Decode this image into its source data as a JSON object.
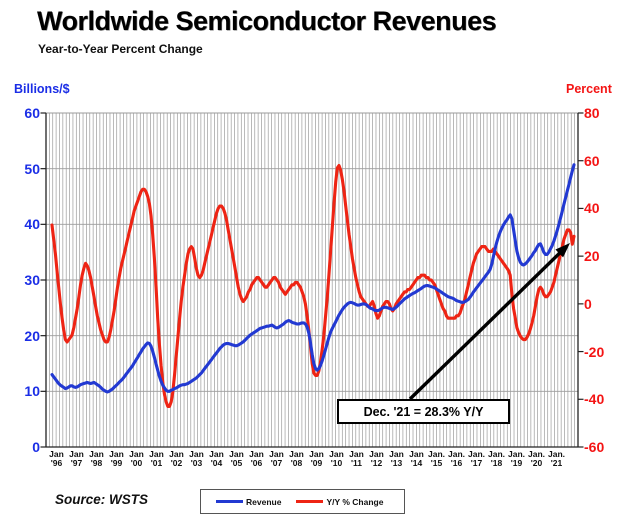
{
  "header": {
    "title": "Worldwide Semiconductor Revenues",
    "subtitle": "Year-to-Year Percent Change"
  },
  "axes": {
    "left_unit": "Billions/$",
    "right_unit": "Percent",
    "left_ticks": [
      60,
      50,
      40,
      30,
      20,
      10,
      0
    ],
    "right_ticks": [
      80,
      60,
      40,
      20,
      0,
      -20,
      -40,
      -60
    ],
    "x_labels": [
      {
        "m": "Jan",
        "y": "'96"
      },
      {
        "m": "Jan",
        "y": "'97"
      },
      {
        "m": "Jan",
        "y": "'98"
      },
      {
        "m": "Jan",
        "y": "'99"
      },
      {
        "m": "Jan",
        "y": "'00"
      },
      {
        "m": "Jan",
        "y": "'01"
      },
      {
        "m": "Jan",
        "y": "'02"
      },
      {
        "m": "Jan",
        "y": "'03"
      },
      {
        "m": "Jan",
        "y": "'04"
      },
      {
        "m": "Jan",
        "y": "'05"
      },
      {
        "m": "Jan",
        "y": "'06"
      },
      {
        "m": "Jan",
        "y": "'07"
      },
      {
        "m": "Jan",
        "y": "'08"
      },
      {
        "m": "Jan",
        "y": "'09"
      },
      {
        "m": "Jan",
        "y": "'10"
      },
      {
        "m": "Jan",
        "y": "'11"
      },
      {
        "m": "Jan",
        "y": "'12"
      },
      {
        "m": "Jan",
        "y": "'13"
      },
      {
        "m": "Jan",
        "y": "'14"
      },
      {
        "m": "Jan.",
        "y": "'15"
      },
      {
        "m": "Jan.",
        "y": "'16"
      },
      {
        "m": "Jan.",
        "y": "'17"
      },
      {
        "m": "Jan.",
        "y": "'18"
      },
      {
        "m": "Jan.",
        "y": "'19"
      },
      {
        "m": "Jan.",
        "y": "'20"
      },
      {
        "m": "Jan.",
        "y": "'21"
      }
    ]
  },
  "annotation": {
    "text": "Dec. '21 = 28.3% Y/Y"
  },
  "legend": [
    {
      "label": "Revenue",
      "color": "#2239d2"
    },
    {
      "label": "Y/Y % Change",
      "color": "#ee2414"
    }
  ],
  "source": "Source: WSTS",
  "colors": {
    "revenue_line": "#2239d2",
    "yoy_line": "#ee2414",
    "left_axis_text": "#1b2ee6",
    "right_axis_text": "#f41414",
    "grid": "#9b9b9b",
    "spine": "#222222",
    "arrow": "#000000"
  },
  "chart_data": {
    "type": "line",
    "title": "Worldwide Semiconductor Revenues",
    "subtitle": "Year-to-Year Percent Change",
    "x_start": "Jan 1996",
    "x_end": "Dec 2021",
    "freq": "monthly",
    "grid": true,
    "left_axis": {
      "label": "Billions/$",
      "min": 0,
      "max": 60
    },
    "right_axis": {
      "label": "Percent",
      "min": -60,
      "max": 80
    },
    "annotation": "Dec. '21 = 28.3% Y/Y",
    "series": [
      {
        "name": "Y/Y % Change",
        "axis": "right",
        "color": "#ee2414",
        "values": [
          33,
          27,
          21,
          14,
          7,
          0,
          -6,
          -11,
          -15,
          -16,
          -15,
          -14,
          -13,
          -10,
          -6,
          -2,
          3,
          8,
          12,
          15,
          17,
          16,
          14,
          11,
          7,
          3,
          -1,
          -5,
          -8,
          -11,
          -13,
          -15,
          -16,
          -16,
          -14,
          -11,
          -7,
          -3,
          2,
          7,
          11,
          15,
          18,
          21,
          24,
          27,
          30,
          33,
          36,
          39,
          41,
          43,
          45,
          47,
          48,
          48,
          47,
          45,
          42,
          37,
          29,
          19,
          7,
          -6,
          -17,
          -26,
          -33,
          -38,
          -41,
          -43,
          -43,
          -41,
          -37,
          -30,
          -22,
          -14,
          -6,
          1,
          7,
          12,
          17,
          21,
          23,
          24,
          23,
          19,
          15,
          12,
          11,
          12,
          14,
          17,
          20,
          23,
          26,
          29,
          32,
          35,
          38,
          40,
          41,
          41,
          40,
          38,
          35,
          31,
          27,
          23,
          19,
          15,
          11,
          7,
          4,
          2,
          1,
          2,
          3,
          5,
          6,
          8,
          9,
          10,
          11,
          11,
          10,
          9,
          8,
          7,
          7,
          8,
          9,
          10,
          11,
          11,
          10,
          9,
          7,
          6,
          5,
          4,
          5,
          6,
          7,
          8,
          8,
          9,
          9,
          8,
          7,
          5,
          3,
          0,
          -5,
          -11,
          -18,
          -25,
          -29,
          -30,
          -30,
          -28,
          -24,
          -19,
          -13,
          -5,
          3,
          12,
          22,
          32,
          42,
          51,
          57,
          58,
          56,
          52,
          47,
          41,
          35,
          29,
          24,
          19,
          15,
          11,
          8,
          5,
          3,
          2,
          1,
          0,
          -1,
          -1,
          0,
          1,
          -1,
          -4,
          -6,
          -5,
          -3,
          -1,
          0,
          1,
          1,
          0,
          -2,
          -3,
          -2,
          0,
          1,
          2,
          3,
          4,
          5,
          5,
          6,
          6,
          7,
          8,
          9,
          10,
          11,
          11,
          12,
          12,
          12,
          11,
          11,
          10,
          10,
          9,
          8,
          6,
          4,
          2,
          0,
          -2,
          -3,
          -5,
          -6,
          -6,
          -6,
          -6,
          -6,
          -5,
          -5,
          -4,
          -2,
          0,
          2,
          5,
          8,
          11,
          14,
          17,
          19,
          21,
          22,
          23,
          24,
          24,
          24,
          23,
          22,
          22,
          22,
          23,
          22,
          21,
          20,
          19,
          18,
          17,
          16,
          15,
          14,
          12,
          4,
          -2,
          -6,
          -10,
          -12,
          -13.5,
          -14.5,
          -15,
          -15,
          -14,
          -12.5,
          -10.5,
          -8,
          -5,
          -1,
          3,
          6,
          7,
          6,
          4,
          3,
          3,
          4,
          5,
          7,
          9,
          12,
          15,
          18,
          21,
          24,
          27,
          29,
          31,
          31,
          30,
          25,
          28.3
        ]
      },
      {
        "name": "Revenue",
        "axis": "left",
        "color": "#2239d2",
        "values": [
          13.0,
          12.6,
          12.2,
          11.8,
          11.4,
          11.1,
          10.9,
          10.7,
          10.5,
          10.6,
          10.8,
          11.0,
          11.0,
          10.8,
          10.7,
          10.8,
          11.0,
          11.2,
          11.3,
          11.4,
          11.5,
          11.6,
          11.5,
          11.4,
          11.5,
          11.6,
          11.4,
          11.2,
          11.0,
          10.7,
          10.4,
          10.2,
          10.0,
          9.9,
          10.0,
          10.2,
          10.4,
          10.7,
          11.0,
          11.3,
          11.6,
          11.9,
          12.2,
          12.6,
          13.0,
          13.4,
          13.8,
          14.2,
          14.6,
          15.1,
          15.6,
          16.1,
          16.6,
          17.1,
          17.6,
          18.0,
          18.4,
          18.7,
          18.6,
          18.1,
          17.2,
          16.1,
          14.9,
          13.8,
          12.7,
          11.8,
          11.1,
          10.6,
          10.2,
          10.0,
          10.0,
          10.2,
          10.3,
          10.5,
          10.6,
          10.8,
          11.0,
          11.1,
          11.2,
          11.2,
          11.3,
          11.4,
          11.6,
          11.8,
          12.0,
          12.2,
          12.4,
          12.7,
          13.0,
          13.3,
          13.7,
          14.1,
          14.5,
          14.9,
          15.3,
          15.7,
          16.1,
          16.5,
          16.9,
          17.3,
          17.7,
          18.0,
          18.3,
          18.5,
          18.6,
          18.6,
          18.5,
          18.4,
          18.3,
          18.2,
          18.2,
          18.3,
          18.5,
          18.7,
          18.9,
          19.2,
          19.5,
          19.8,
          20.1,
          20.3,
          20.5,
          20.7,
          20.9,
          21.1,
          21.3,
          21.4,
          21.5,
          21.6,
          21.7,
          21.7,
          21.8,
          21.9,
          21.7,
          21.5,
          21.4,
          21.5,
          21.7,
          21.9,
          22.1,
          22.4,
          22.6,
          22.7,
          22.6,
          22.4,
          22.3,
          22.2,
          22.1,
          22.1,
          22.2,
          22.3,
          22.3,
          22.1,
          21.6,
          20.5,
          18.7,
          16.6,
          15.0,
          14.1,
          13.8,
          14.1,
          14.7,
          15.5,
          16.5,
          17.6,
          18.7,
          19.7,
          20.6,
          21.3,
          21.9,
          22.5,
          23.1,
          23.7,
          24.2,
          24.7,
          25.1,
          25.4,
          25.7,
          25.9,
          26.0,
          25.9,
          25.8,
          25.6,
          25.5,
          25.5,
          25.6,
          25.7,
          25.7,
          25.6,
          25.4,
          25.1,
          24.9,
          24.8,
          24.6,
          24.5,
          24.5,
          24.6,
          24.8,
          25.0,
          25.1,
          25.1,
          25.0,
          24.9,
          24.8,
          24.7,
          24.9,
          25.1,
          25.4,
          25.7,
          26.0,
          26.3,
          26.6,
          26.8,
          27.0,
          27.2,
          27.4,
          27.6,
          27.7,
          27.9,
          28.1,
          28.3,
          28.5,
          28.7,
          28.9,
          29.0,
          29.0,
          28.9,
          28.8,
          28.7,
          28.6,
          28.4,
          28.2,
          28.0,
          27.8,
          27.6,
          27.4,
          27.2,
          27.0,
          26.9,
          26.8,
          26.7,
          26.5,
          26.3,
          26.2,
          26.1,
          26.0,
          26.0,
          26.1,
          26.3,
          26.5,
          26.9,
          27.3,
          27.8,
          28.2,
          28.6,
          29.0,
          29.4,
          29.8,
          30.2,
          30.6,
          31.0,
          31.4,
          31.9,
          32.9,
          34.2,
          35.6,
          36.8,
          37.8,
          38.6,
          39.3,
          39.9,
          40.4,
          40.8,
          41.3,
          41.7,
          41.0,
          39.0,
          37.0,
          35.2,
          34.0,
          33.2,
          32.8,
          32.7,
          32.9,
          33.2,
          33.6,
          34.0,
          34.4,
          34.9,
          35.3,
          35.9,
          36.4,
          36.5,
          35.8,
          35.0,
          34.6,
          34.6,
          35.0,
          35.6,
          36.2,
          37.0,
          37.9,
          38.9,
          40.0,
          41.2,
          42.4,
          43.6,
          44.8,
          46.0,
          47.2,
          48.4,
          49.6,
          50.7
        ]
      }
    ]
  }
}
